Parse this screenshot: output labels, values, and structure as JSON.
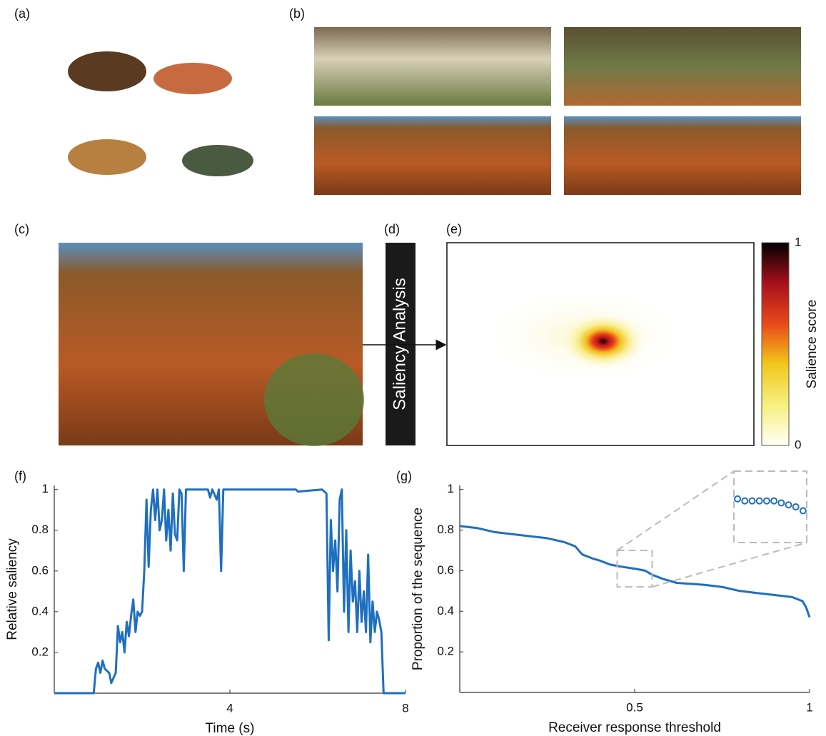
{
  "panel_labels": [
    "(a)",
    "(b)",
    "(c)",
    "(d)",
    "(e)",
    "(f)",
    "(g)"
  ],
  "analysis_label": "Saliency Analysis",
  "colorbar": {
    "label": "Salience score",
    "lim": [
      0,
      1
    ],
    "ticks": [
      0,
      1
    ]
  },
  "chart_data": [
    {
      "type": "line",
      "xlabel": "Time (s)",
      "ylabel": "Relative saliency",
      "color": "#1f6fbf",
      "xlim": [
        0,
        8
      ],
      "ylim": [
        0,
        1.02
      ],
      "xticks": [
        4,
        8
      ],
      "yticks": [
        0.2,
        0.4,
        0.6,
        0.8,
        1
      ],
      "x": [
        0,
        0.9,
        0.95,
        1.0,
        1.05,
        1.1,
        1.15,
        1.25,
        1.3,
        1.4,
        1.45,
        1.5,
        1.55,
        1.6,
        1.65,
        1.7,
        1.75,
        1.8,
        1.85,
        1.9,
        1.95,
        2.0,
        2.05,
        2.1,
        2.15,
        2.2,
        2.25,
        2.3,
        2.35,
        2.4,
        2.45,
        2.5,
        2.55,
        2.6,
        2.65,
        2.7,
        2.75,
        2.8,
        2.85,
        2.9,
        2.95,
        3.0,
        3.5,
        3.55,
        3.6,
        3.7,
        3.75,
        3.8,
        3.85,
        5.5,
        5.55,
        6.1,
        6.2,
        6.25,
        6.3,
        6.35,
        6.4,
        6.45,
        6.5,
        6.55,
        6.6,
        6.65,
        6.7,
        6.75,
        6.8,
        6.85,
        6.9,
        6.95,
        7.0,
        7.05,
        7.1,
        7.15,
        7.2,
        7.25,
        7.3,
        7.35,
        7.4,
        7.45,
        7.5,
        8.0
      ],
      "values": [
        0,
        0,
        0.12,
        0.15,
        0.1,
        0.16,
        0.12,
        0.1,
        0.05,
        0.1,
        0.33,
        0.25,
        0.3,
        0.2,
        0.35,
        0.28,
        0.38,
        0.46,
        0.3,
        0.4,
        0.38,
        0.4,
        0.6,
        0.95,
        0.62,
        0.9,
        1.0,
        0.85,
        1.0,
        0.8,
        0.85,
        1.0,
        0.75,
        0.9,
        0.7,
        0.98,
        0.78,
        0.75,
        1.0,
        0.98,
        0.6,
        1.0,
        1.0,
        0.96,
        1.0,
        0.95,
        1.0,
        0.6,
        1.0,
        1.0,
        0.99,
        1.0,
        0.98,
        0.26,
        0.85,
        0.6,
        0.75,
        0.5,
        0.95,
        1.0,
        0.4,
        0.8,
        0.3,
        0.7,
        0.45,
        0.55,
        0.3,
        0.6,
        0.35,
        0.5,
        0.3,
        0.68,
        0.25,
        0.45,
        0.3,
        0.4,
        0.36,
        0.3,
        0,
        0
      ]
    },
    {
      "type": "line",
      "xlabel": "Receiver response threshold",
      "ylabel": "Proportion of the sequence",
      "color": "#1f6fbf",
      "xlim": [
        0,
        1
      ],
      "ylim": [
        0,
        1.02
      ],
      "xticks": [
        0.5,
        1
      ],
      "yticks": [
        0.2,
        0.4,
        0.6,
        0.8,
        1
      ],
      "x": [
        0,
        0.05,
        0.1,
        0.15,
        0.2,
        0.25,
        0.3,
        0.33,
        0.35,
        0.38,
        0.4,
        0.43,
        0.46,
        0.5,
        0.53,
        0.55,
        0.58,
        0.62,
        0.7,
        0.75,
        0.8,
        0.85,
        0.9,
        0.95,
        0.98,
        0.99,
        1.0
      ],
      "values": [
        0.82,
        0.81,
        0.79,
        0.78,
        0.77,
        0.76,
        0.74,
        0.72,
        0.68,
        0.66,
        0.65,
        0.63,
        0.62,
        0.61,
        0.6,
        0.58,
        0.56,
        0.54,
        0.53,
        0.52,
        0.5,
        0.49,
        0.48,
        0.47,
        0.45,
        0.42,
        0.37
      ],
      "inset": {
        "xlim": [
          0.45,
          0.55
        ],
        "ylim": [
          0.52,
          0.7
        ],
        "x": [
          0.455,
          0.465,
          0.475,
          0.485,
          0.495,
          0.505,
          0.515,
          0.525,
          0.535,
          0.545
        ],
        "values": [
          0.63,
          0.625,
          0.625,
          0.625,
          0.625,
          0.625,
          0.62,
          0.615,
          0.61,
          0.6
        ]
      }
    }
  ]
}
